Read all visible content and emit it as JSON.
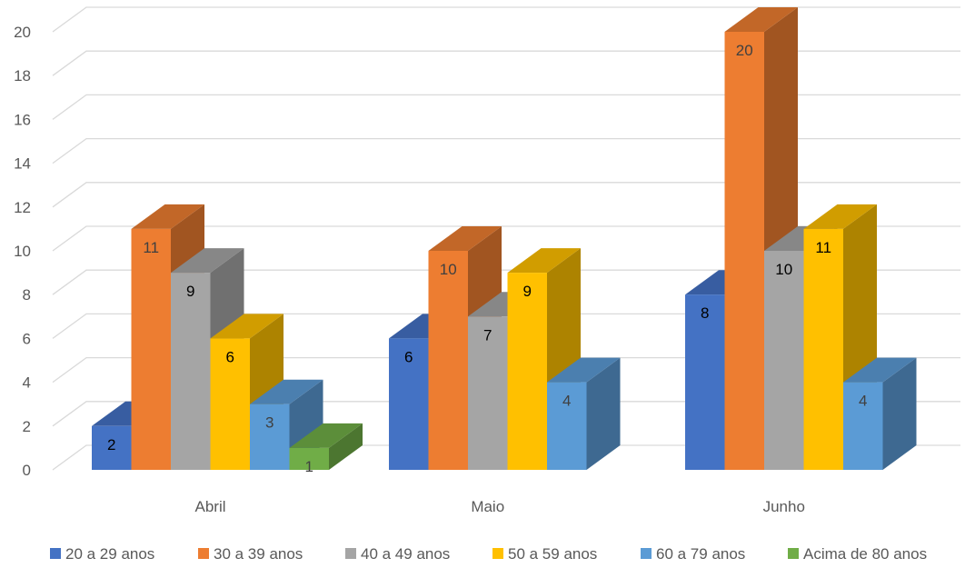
{
  "chart_data": {
    "type": "bar",
    "title": "",
    "xlabel": "",
    "ylabel": "",
    "ylim": [
      0,
      20
    ],
    "yticks": [
      0,
      2,
      4,
      6,
      8,
      10,
      12,
      14,
      16,
      18,
      20
    ],
    "grid": true,
    "legend_position": "bottom",
    "categories": [
      "Abril",
      "Maio",
      "Junho"
    ],
    "series": [
      {
        "name": "20 a 29 anos",
        "color": "#4472C4",
        "values": [
          2,
          6,
          8
        ]
      },
      {
        "name": "30 a 39 anos",
        "color": "#ED7D31",
        "values": [
          11,
          10,
          20
        ]
      },
      {
        "name": "40 a 49 anos",
        "color": "#A5A5A5",
        "values": [
          9,
          7,
          10
        ]
      },
      {
        "name": "50 a 59 anos",
        "color": "#FFC000",
        "values": [
          6,
          9,
          11
        ]
      },
      {
        "name": "60 a 79 anos",
        "color": "#5B9BD5",
        "values": [
          3,
          4,
          4
        ]
      },
      {
        "name": "Acima de 80 anos",
        "color": "#70AD47",
        "values": [
          1,
          null,
          null
        ]
      }
    ]
  }
}
